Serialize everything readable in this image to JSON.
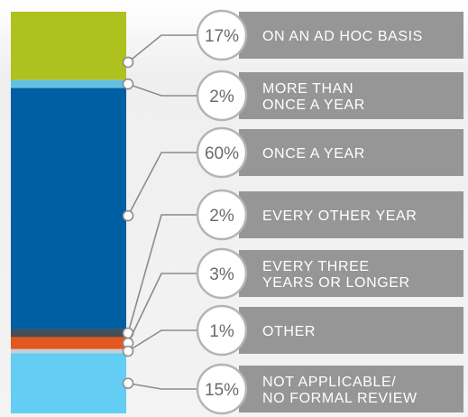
{
  "chart_data": {
    "type": "bar",
    "stacked": true,
    "title": "",
    "xlabel": "",
    "ylabel": "",
    "ylim": [
      0,
      100
    ],
    "unit": "%",
    "categories": [
      {
        "pct": "17%",
        "label": [
          "ON AN AD HOC BASIS"
        ],
        "value": 17,
        "color": "#afc11f"
      },
      {
        "pct": "2%",
        "label": [
          "MORE THAN",
          "ONCE A YEAR"
        ],
        "value": 2,
        "color": "#64c0e3"
      },
      {
        "pct": "60%",
        "label": [
          "ONCE A YEAR"
        ],
        "value": 60,
        "color": "#005ea2"
      },
      {
        "pct": "2%",
        "label": [
          "EVERY OTHER YEAR"
        ],
        "value": 2,
        "color": "#444f59"
      },
      {
        "pct": "3%",
        "label": [
          "EVERY THREE",
          "YEARS OR LONGER"
        ],
        "value": 3,
        "color": "#e3581f"
      },
      {
        "pct": "1%",
        "label": [
          "OTHER"
        ],
        "value": 1,
        "color": "#c9ced3"
      },
      {
        "pct": "15%",
        "label": [
          "NOT APPLICABLE/",
          "NO FORMAL REVIEW"
        ],
        "value": 15,
        "color": "#64cdf4"
      }
    ],
    "colors": {
      "label_box": "#969696",
      "circle_border": "#b4b4b4",
      "leader_line": "#8c8c8c"
    }
  }
}
